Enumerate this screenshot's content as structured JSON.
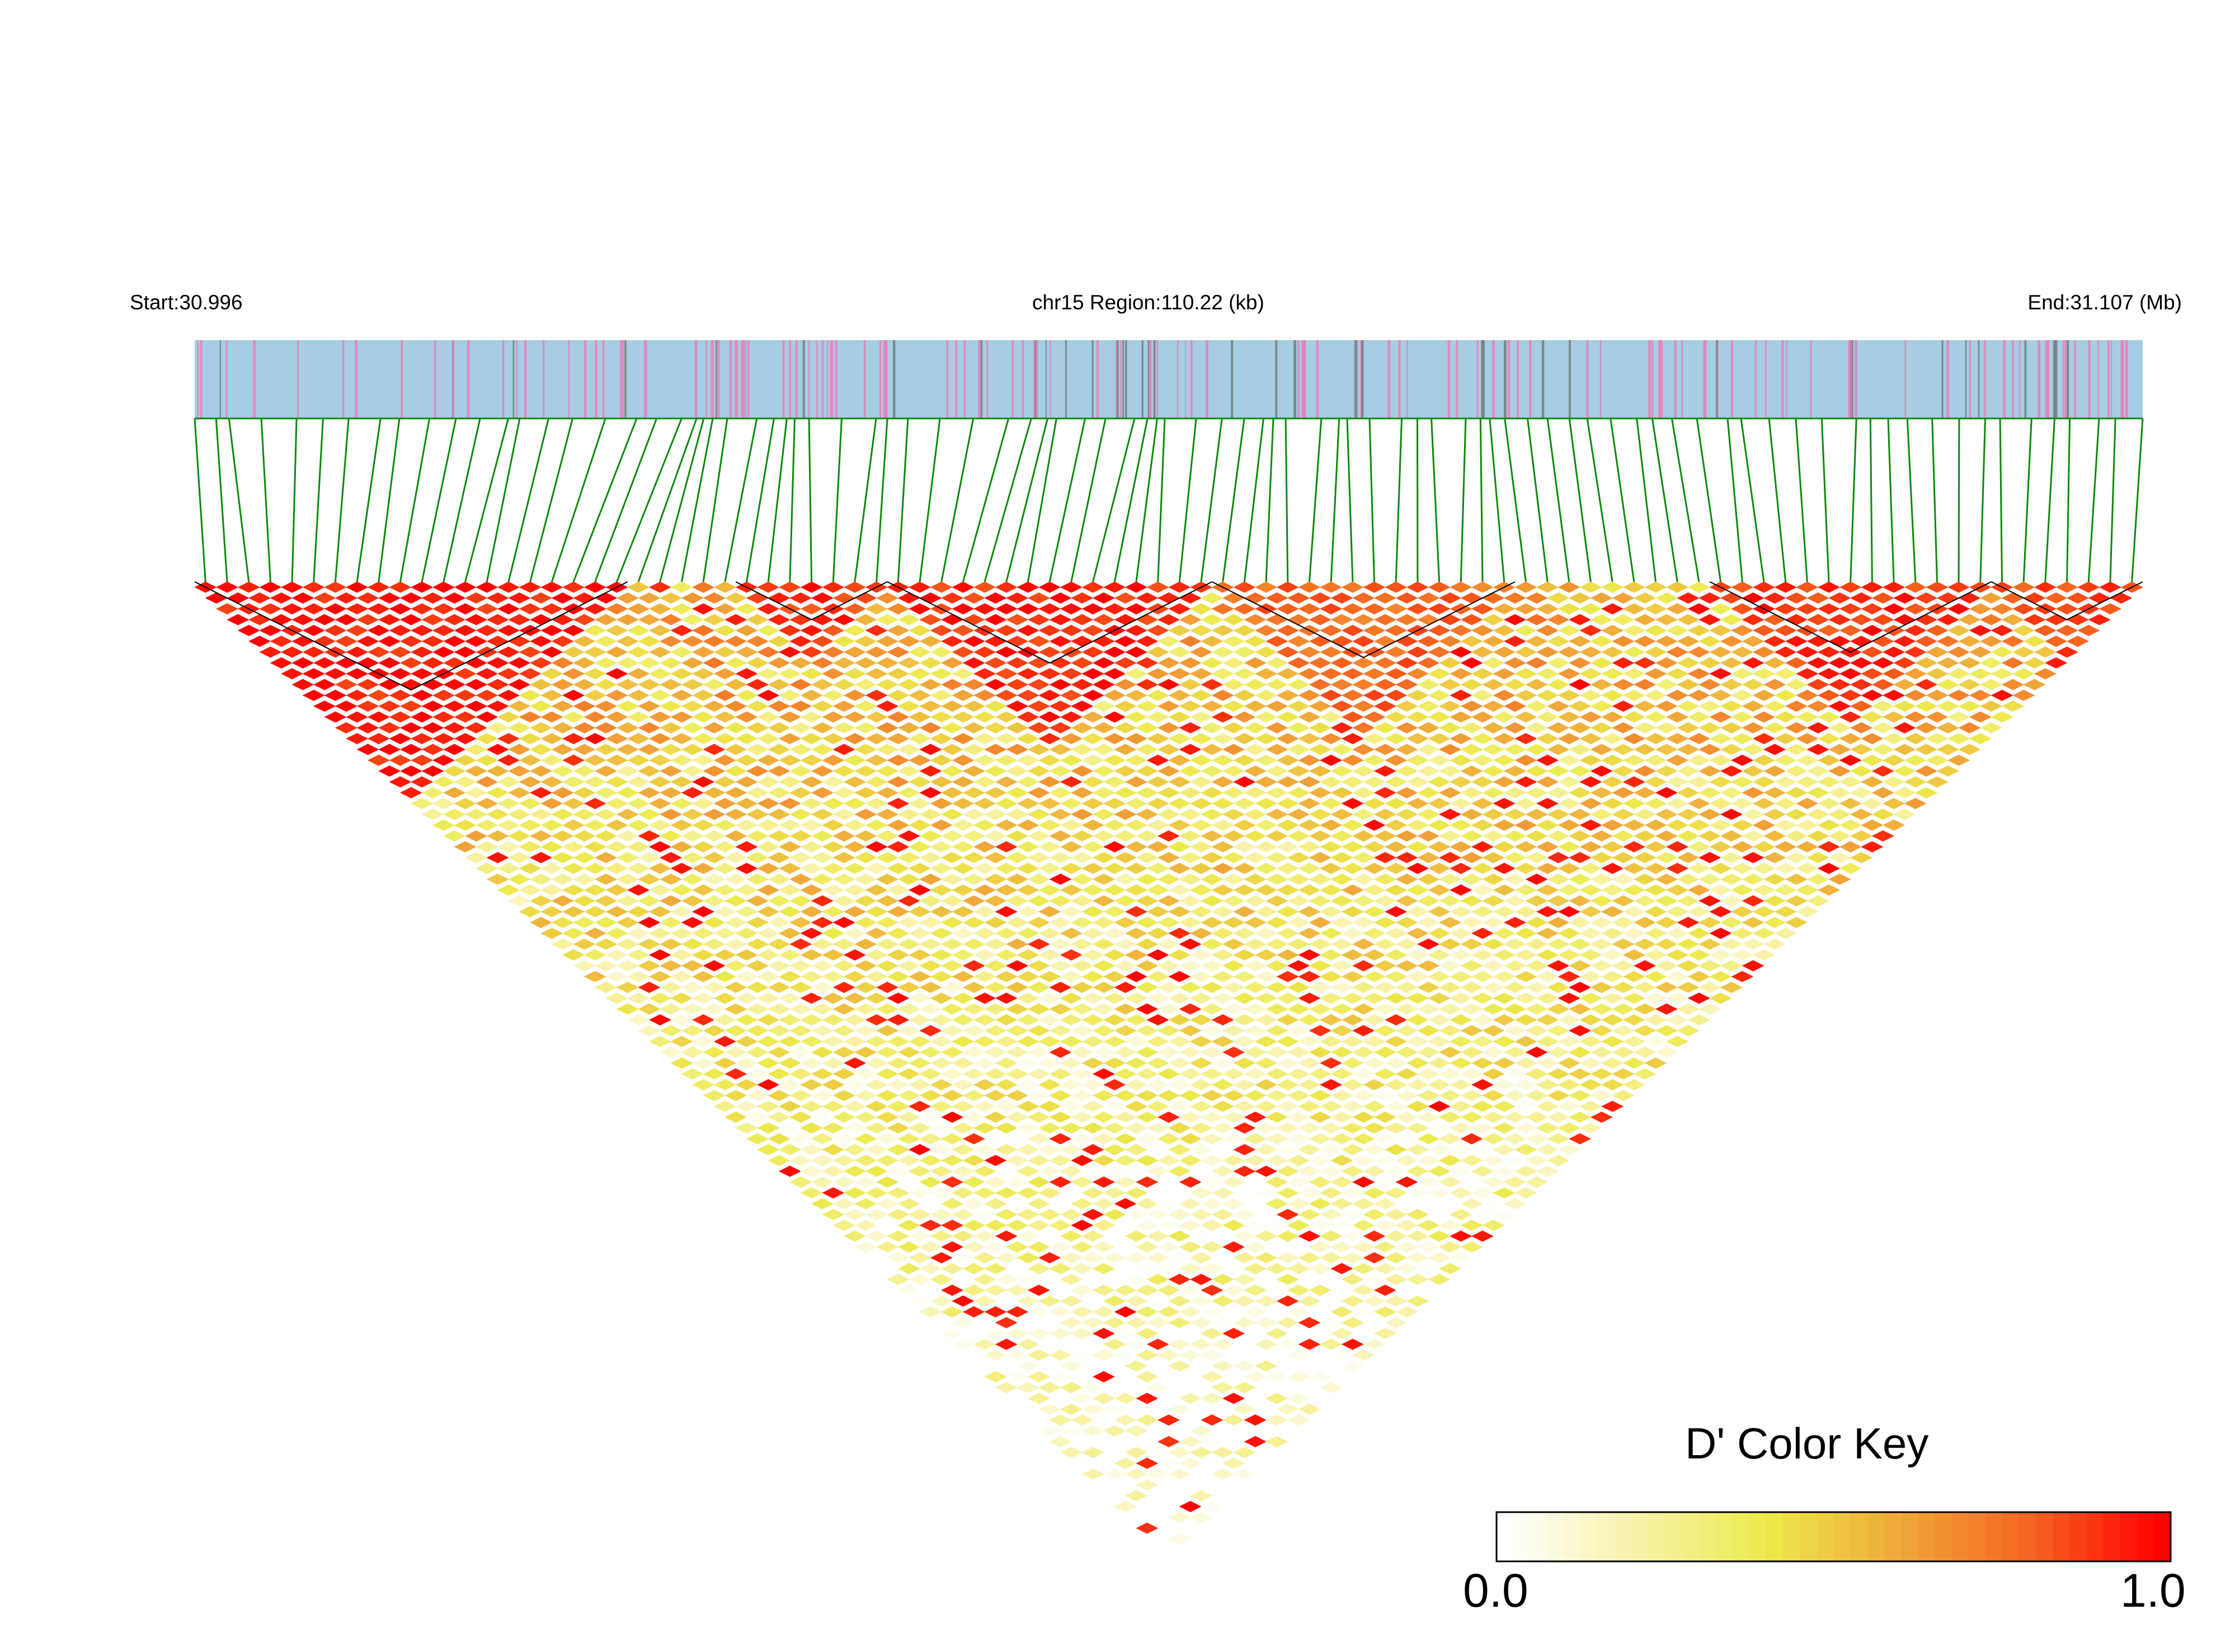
{
  "chart_data": {
    "type": "heatmap",
    "subtype": "linkage-disequilibrium-triangle",
    "chromosome": "chr15",
    "start_label": "Start:30.996",
    "region_label": "chr15 Region:110.22 (kb)",
    "end_label": "End:31.107 (Mb)",
    "x_range_mb": [
      30.996,
      31.107
    ],
    "region_kb": 110.22,
    "statistic": "D'",
    "color_key": {
      "title": "D' Color Key",
      "min_label": "0.0",
      "max_label": "1.0",
      "range": [
        0.0,
        1.0
      ],
      "colors": [
        "#ffffff",
        "#f8f2a8",
        "#ecea4c",
        "#f0a83a",
        "#f5641f",
        "#ff0000"
      ]
    },
    "track_colors": {
      "gene_track": "#a6cde3",
      "snp_tick_pink": "#e77fb8",
      "snp_tick_gray": "#6f7f7f",
      "connector": "#0a8a0a"
    },
    "high_ld_blocks": [
      {
        "from": 0.0,
        "to": 0.22,
        "d_prime": 0.96
      },
      {
        "from": 0.28,
        "to": 0.36,
        "d_prime": 0.9
      },
      {
        "from": 0.36,
        "to": 0.52,
        "d_prime": 0.93
      },
      {
        "from": 0.52,
        "to": 0.68,
        "d_prime": 0.78
      },
      {
        "from": 0.78,
        "to": 0.92,
        "d_prime": 0.9
      },
      {
        "from": 0.92,
        "to": 1.0,
        "d_prime": 0.86
      }
    ],
    "background_d_prime": 0.42
  }
}
